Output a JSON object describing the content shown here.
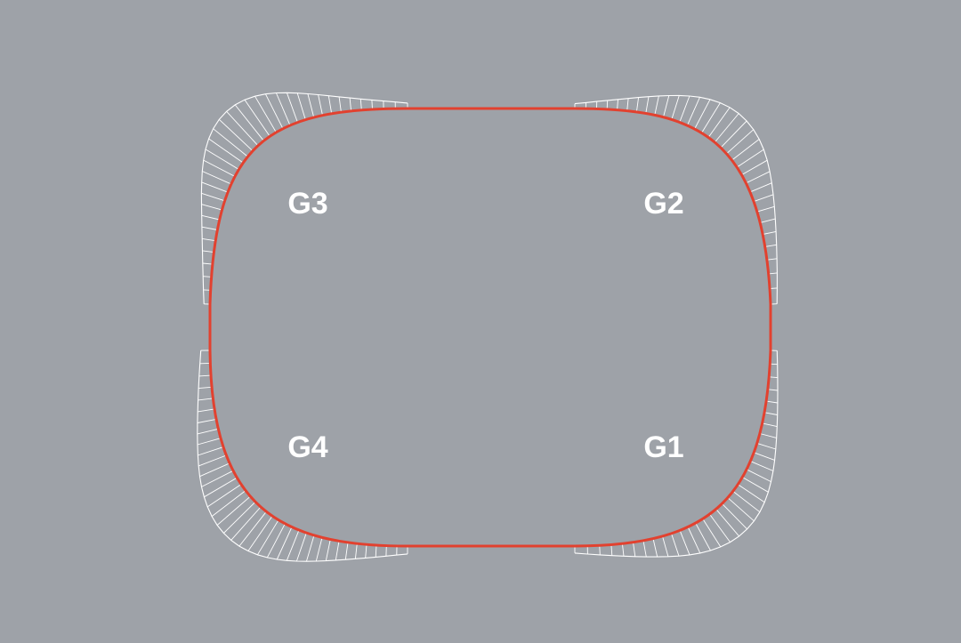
{
  "diagram": {
    "background_color": "#9ea2a8",
    "outline_color": "#e2412f",
    "comb_color": "#ffffff",
    "label_color": "#ffffff",
    "corner_labels": {
      "top_left": "G3",
      "top_right": "G2",
      "bottom_left": "G4",
      "bottom_right": "G1"
    }
  }
}
